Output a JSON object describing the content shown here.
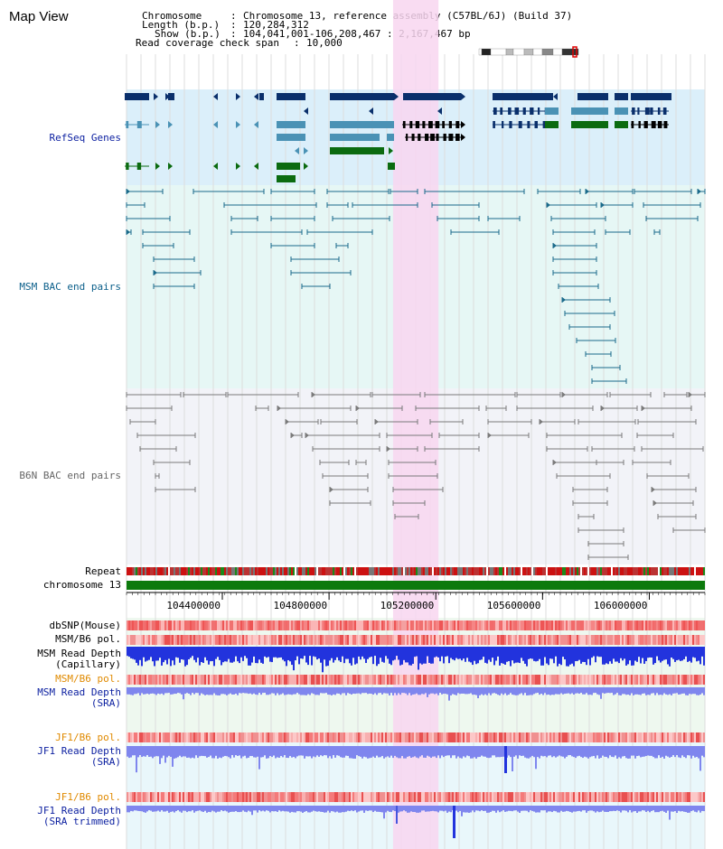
{
  "view_title": "Map View",
  "header": {
    "chromosome_key": "Chromosome",
    "chromosome_val": "Chromosome 13, reference assembly (C57BL/6J) (Build 37)",
    "length_key": "Length (b.p.)",
    "length_val": "120,284,312",
    "show_key": "Show (b.p.)",
    "show_val": "104,041,001-106,208,467 : 2,167,467 bp",
    "coverage_key": "Read coverage check span",
    "coverage_val": "10,000"
  },
  "tracks": {
    "refseq": "RefSeq Genes",
    "msm_bac": "MSM BAC end pairs",
    "b6n_bac": "B6N BAC end pairs",
    "repeat": "Repeat",
    "chromosome": "chromosome 13",
    "dbsnp": "dbSNP(Mouse)",
    "msm_b6_pol_1": "MSM/B6 pol.",
    "msm_read_depth_cap": "MSM Read Depth\n(Capillary)",
    "msm_b6_pol_2": "MSM/B6 pol.",
    "msm_read_depth_sra": "MSM Read Depth\n(SRA)",
    "jf1_b6_pol_1": "JF1/B6 pol.",
    "jf1_read_depth_sra": "JF1 Read Depth\n(SRA)",
    "jf1_b6_pol_2": "JF1/B6 pol.",
    "jf1_read_depth_trim": "JF1 Read Depth\n(SRA trimmed)"
  },
  "axis": {
    "ticks": [
      "104400000",
      "104800000",
      "105200000",
      "105600000",
      "106000000"
    ],
    "tick_values": [
      104400000,
      104800000,
      105200000,
      105600000,
      106000000
    ]
  },
  "view_range": {
    "start": 104041001,
    "end": 106208467
  },
  "highlight_range": {
    "start": 105040000,
    "end": 105210000
  },
  "colors": {
    "refseq_bg": "#dbeffa",
    "msm_bac_bg": "#e6f7f5",
    "b6n_bac_bg": "#f2f3f8",
    "highlight": "#f8d6f0",
    "gene_dark": "#0a2f6b",
    "gene_mid": "#4a92b5",
    "gene_green": "#0b6b10",
    "msm_bac": "#1a6a8a",
    "b6n_bac": "#7a7a7a",
    "chromosome_bar": "#0d7a0d",
    "depth_blue": "#2233dd",
    "depth_light": "#7f86ee"
  }
}
